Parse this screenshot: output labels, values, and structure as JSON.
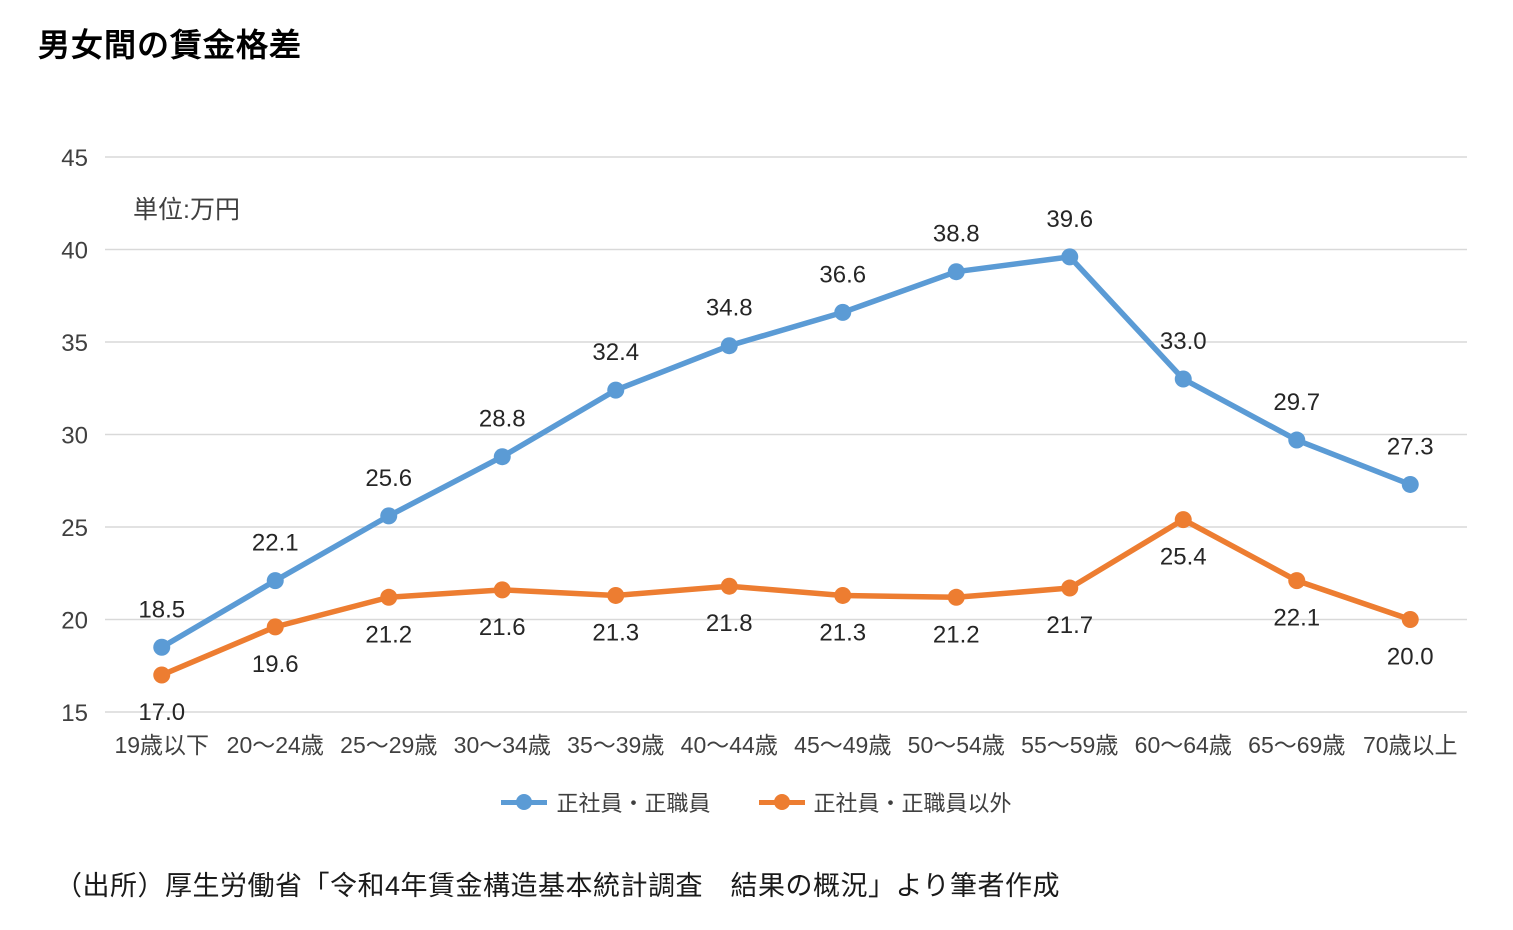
{
  "page": {
    "title": "男女間の賃金格差",
    "source_note": "（出所）厚生労働省「令和4年賃金構造基本統計調査　結果の概況」より筆者作成"
  },
  "chart_data": {
    "type": "line",
    "title": "男女間の賃金格差",
    "unit_label": "単位:万円",
    "categories": [
      "19歳以下",
      "20～24歳",
      "25～29歳",
      "30～34歳",
      "35～39歳",
      "40～44歳",
      "45～49歳",
      "50～54歳",
      "55～59歳",
      "60～64歳",
      "65～69歳",
      "70歳以上"
    ],
    "series": [
      {
        "name": "正社員・正職員",
        "color": "#5B9BD5",
        "label_position": "above",
        "values": [
          18.5,
          22.1,
          25.6,
          28.8,
          32.4,
          34.8,
          36.6,
          38.8,
          39.6,
          33.0,
          29.7,
          27.3
        ]
      },
      {
        "name": "正社員・正職員以外",
        "color": "#ED7D31",
        "label_position": "below",
        "values": [
          17.0,
          19.6,
          21.2,
          21.6,
          21.3,
          21.8,
          21.3,
          21.2,
          21.7,
          25.4,
          22.1,
          20.0
        ]
      }
    ],
    "ylim": [
      15,
      45
    ],
    "yticks": [
      15,
      20,
      25,
      30,
      35,
      40,
      45
    ],
    "grid": true,
    "legend_position": "bottom",
    "colors": {
      "gridline": "#D9D9D9",
      "axis_text": "#404040",
      "data_label": "#262626",
      "title_text": "#000000",
      "source_text": "#1A1A1A"
    }
  }
}
